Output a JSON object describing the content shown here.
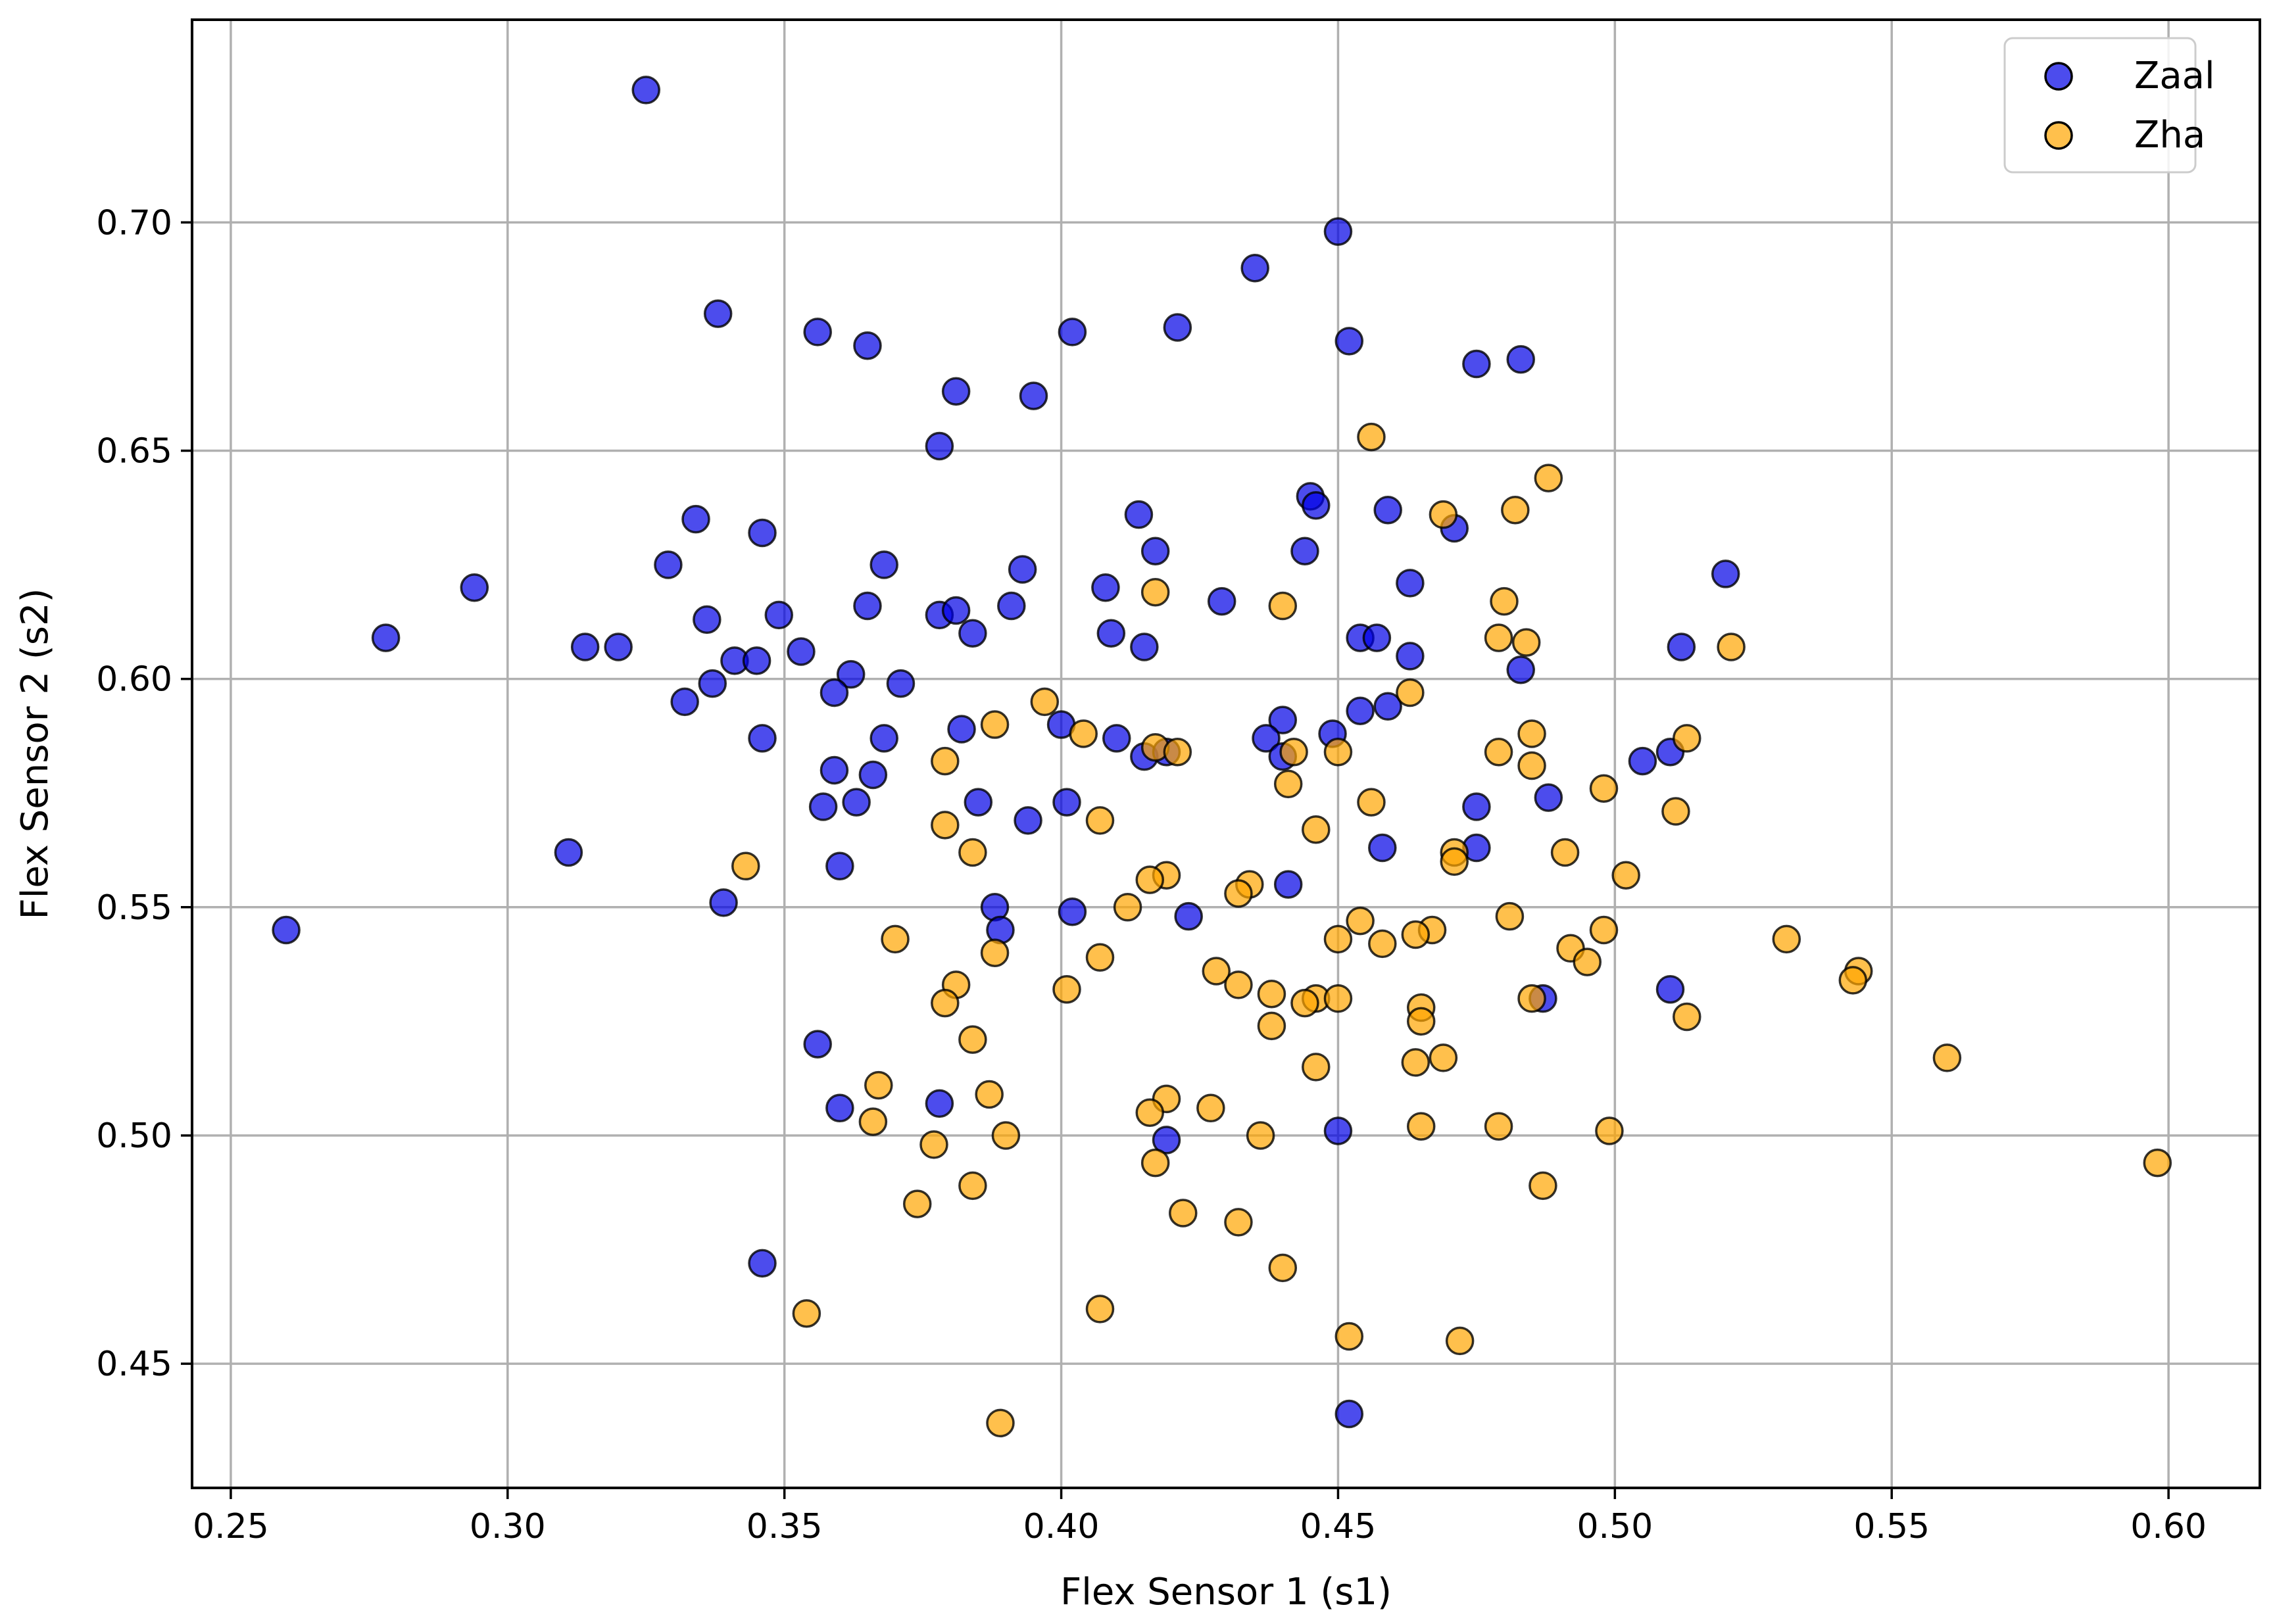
{
  "chart_data": {
    "type": "scatter",
    "xlabel": "Flex Sensor 1 (s1)",
    "ylabel": "Flex Sensor 2 (s2)",
    "xlim": [
      0.243,
      0.6165
    ],
    "ylim": [
      0.4228,
      0.7444
    ],
    "xticks": [
      0.25,
      0.3,
      0.35,
      0.4,
      0.45,
      0.5,
      0.55,
      0.6
    ],
    "yticks": [
      0.45,
      0.5,
      0.55,
      0.6,
      0.65,
      0.7
    ],
    "xtick_labels": [
      "0.25",
      "0.30",
      "0.35",
      "0.40",
      "0.45",
      "0.50",
      "0.55",
      "0.60"
    ],
    "ytick_labels": [
      "0.45",
      "0.50",
      "0.55",
      "0.60",
      "0.65",
      "0.70"
    ],
    "grid": true,
    "legend_position": "top-right",
    "series": [
      {
        "name": "Zaal",
        "color": "#0000e6",
        "points": [
          [
            0.325,
            0.729
          ],
          [
            0.45,
            0.698
          ],
          [
            0.435,
            0.69
          ],
          [
            0.338,
            0.68
          ],
          [
            0.356,
            0.676
          ],
          [
            0.402,
            0.676
          ],
          [
            0.421,
            0.677
          ],
          [
            0.365,
            0.673
          ],
          [
            0.452,
            0.674
          ],
          [
            0.475,
            0.669
          ],
          [
            0.483,
            0.67
          ],
          [
            0.381,
            0.663
          ],
          [
            0.395,
            0.662
          ],
          [
            0.378,
            0.651
          ],
          [
            0.334,
            0.635
          ],
          [
            0.445,
            0.64
          ],
          [
            0.446,
            0.638
          ],
          [
            0.414,
            0.636
          ],
          [
            0.459,
            0.637
          ],
          [
            0.471,
            0.633
          ],
          [
            0.346,
            0.632
          ],
          [
            0.329,
            0.625
          ],
          [
            0.368,
            0.625
          ],
          [
            0.393,
            0.624
          ],
          [
            0.417,
            0.628
          ],
          [
            0.444,
            0.628
          ],
          [
            0.294,
            0.62
          ],
          [
            0.463,
            0.621
          ],
          [
            0.408,
            0.62
          ],
          [
            0.52,
            0.623
          ],
          [
            0.336,
            0.613
          ],
          [
            0.349,
            0.614
          ],
          [
            0.365,
            0.616
          ],
          [
            0.378,
            0.614
          ],
          [
            0.381,
            0.615
          ],
          [
            0.391,
            0.616
          ],
          [
            0.429,
            0.617
          ],
          [
            0.278,
            0.609
          ],
          [
            0.314,
            0.607
          ],
          [
            0.32,
            0.607
          ],
          [
            0.409,
            0.61
          ],
          [
            0.384,
            0.61
          ],
          [
            0.415,
            0.607
          ],
          [
            0.454,
            0.609
          ],
          [
            0.457,
            0.609
          ],
          [
            0.512,
            0.607
          ],
          [
            0.463,
            0.605
          ],
          [
            0.341,
            0.604
          ],
          [
            0.345,
            0.604
          ],
          [
            0.353,
            0.606
          ],
          [
            0.362,
            0.601
          ],
          [
            0.483,
            0.602
          ],
          [
            0.337,
            0.599
          ],
          [
            0.371,
            0.599
          ],
          [
            0.332,
            0.595
          ],
          [
            0.359,
            0.597
          ],
          [
            0.44,
            0.591
          ],
          [
            0.4,
            0.59
          ],
          [
            0.382,
            0.589
          ],
          [
            0.454,
            0.593
          ],
          [
            0.459,
            0.594
          ],
          [
            0.449,
            0.588
          ],
          [
            0.346,
            0.587
          ],
          [
            0.368,
            0.587
          ],
          [
            0.41,
            0.587
          ],
          [
            0.437,
            0.587
          ],
          [
            0.415,
            0.583
          ],
          [
            0.419,
            0.584
          ],
          [
            0.44,
            0.583
          ],
          [
            0.505,
            0.582
          ],
          [
            0.51,
            0.584
          ],
          [
            0.359,
            0.58
          ],
          [
            0.366,
            0.579
          ],
          [
            0.357,
            0.572
          ],
          [
            0.363,
            0.573
          ],
          [
            0.385,
            0.573
          ],
          [
            0.401,
            0.573
          ],
          [
            0.475,
            0.572
          ],
          [
            0.488,
            0.574
          ],
          [
            0.394,
            0.569
          ],
          [
            0.458,
            0.563
          ],
          [
            0.475,
            0.563
          ],
          [
            0.311,
            0.562
          ],
          [
            0.36,
            0.559
          ],
          [
            0.441,
            0.555
          ],
          [
            0.339,
            0.551
          ],
          [
            0.388,
            0.55
          ],
          [
            0.402,
            0.549
          ],
          [
            0.423,
            0.548
          ],
          [
            0.389,
            0.545
          ],
          [
            0.26,
            0.545
          ],
          [
            0.51,
            0.532
          ],
          [
            0.487,
            0.53
          ],
          [
            0.356,
            0.52
          ],
          [
            0.36,
            0.506
          ],
          [
            0.378,
            0.507
          ],
          [
            0.45,
            0.501
          ],
          [
            0.419,
            0.499
          ],
          [
            0.346,
            0.472
          ],
          [
            0.452,
            0.439
          ]
        ]
      },
      {
        "name": "Zha",
        "color": "#ffa500",
        "points": [
          [
            0.456,
            0.653
          ],
          [
            0.488,
            0.644
          ],
          [
            0.482,
            0.637
          ],
          [
            0.469,
            0.636
          ],
          [
            0.417,
            0.619
          ],
          [
            0.44,
            0.616
          ],
          [
            0.48,
            0.617
          ],
          [
            0.479,
            0.609
          ],
          [
            0.484,
            0.608
          ],
          [
            0.521,
            0.607
          ],
          [
            0.463,
            0.597
          ],
          [
            0.397,
            0.595
          ],
          [
            0.388,
            0.59
          ],
          [
            0.404,
            0.588
          ],
          [
            0.485,
            0.588
          ],
          [
            0.513,
            0.587
          ],
          [
            0.417,
            0.585
          ],
          [
            0.421,
            0.584
          ],
          [
            0.442,
            0.584
          ],
          [
            0.45,
            0.584
          ],
          [
            0.479,
            0.584
          ],
          [
            0.379,
            0.582
          ],
          [
            0.485,
            0.581
          ],
          [
            0.441,
            0.577
          ],
          [
            0.498,
            0.576
          ],
          [
            0.456,
            0.573
          ],
          [
            0.511,
            0.571
          ],
          [
            0.407,
            0.569
          ],
          [
            0.379,
            0.568
          ],
          [
            0.446,
            0.567
          ],
          [
            0.384,
            0.562
          ],
          [
            0.471,
            0.562
          ],
          [
            0.491,
            0.562
          ],
          [
            0.471,
            0.56
          ],
          [
            0.343,
            0.559
          ],
          [
            0.502,
            0.557
          ],
          [
            0.419,
            0.557
          ],
          [
            0.416,
            0.556
          ],
          [
            0.434,
            0.555
          ],
          [
            0.432,
            0.553
          ],
          [
            0.412,
            0.55
          ],
          [
            0.481,
            0.548
          ],
          [
            0.454,
            0.547
          ],
          [
            0.467,
            0.545
          ],
          [
            0.498,
            0.545
          ],
          [
            0.464,
            0.544
          ],
          [
            0.531,
            0.543
          ],
          [
            0.37,
            0.543
          ],
          [
            0.45,
            0.543
          ],
          [
            0.458,
            0.542
          ],
          [
            0.492,
            0.541
          ],
          [
            0.388,
            0.54
          ],
          [
            0.407,
            0.539
          ],
          [
            0.495,
            0.538
          ],
          [
            0.428,
            0.536
          ],
          [
            0.544,
            0.536
          ],
          [
            0.543,
            0.534
          ],
          [
            0.381,
            0.533
          ],
          [
            0.401,
            0.532
          ],
          [
            0.432,
            0.533
          ],
          [
            0.438,
            0.531
          ],
          [
            0.446,
            0.53
          ],
          [
            0.45,
            0.53
          ],
          [
            0.444,
            0.529
          ],
          [
            0.379,
            0.529
          ],
          [
            0.485,
            0.53
          ],
          [
            0.465,
            0.528
          ],
          [
            0.513,
            0.526
          ],
          [
            0.465,
            0.525
          ],
          [
            0.438,
            0.524
          ],
          [
            0.384,
            0.521
          ],
          [
            0.56,
            0.517
          ],
          [
            0.469,
            0.517
          ],
          [
            0.464,
            0.516
          ],
          [
            0.446,
            0.515
          ],
          [
            0.367,
            0.511
          ],
          [
            0.387,
            0.509
          ],
          [
            0.419,
            0.508
          ],
          [
            0.427,
            0.506
          ],
          [
            0.416,
            0.505
          ],
          [
            0.366,
            0.503
          ],
          [
            0.465,
            0.502
          ],
          [
            0.479,
            0.502
          ],
          [
            0.499,
            0.501
          ],
          [
            0.39,
            0.5
          ],
          [
            0.436,
            0.5
          ],
          [
            0.377,
            0.498
          ],
          [
            0.417,
            0.494
          ],
          [
            0.598,
            0.494
          ],
          [
            0.384,
            0.489
          ],
          [
            0.487,
            0.489
          ],
          [
            0.374,
            0.485
          ],
          [
            0.422,
            0.483
          ],
          [
            0.432,
            0.481
          ],
          [
            0.44,
            0.471
          ],
          [
            0.407,
            0.462
          ],
          [
            0.354,
            0.461
          ],
          [
            0.452,
            0.456
          ],
          [
            0.472,
            0.455
          ],
          [
            0.389,
            0.437
          ]
        ]
      }
    ]
  }
}
